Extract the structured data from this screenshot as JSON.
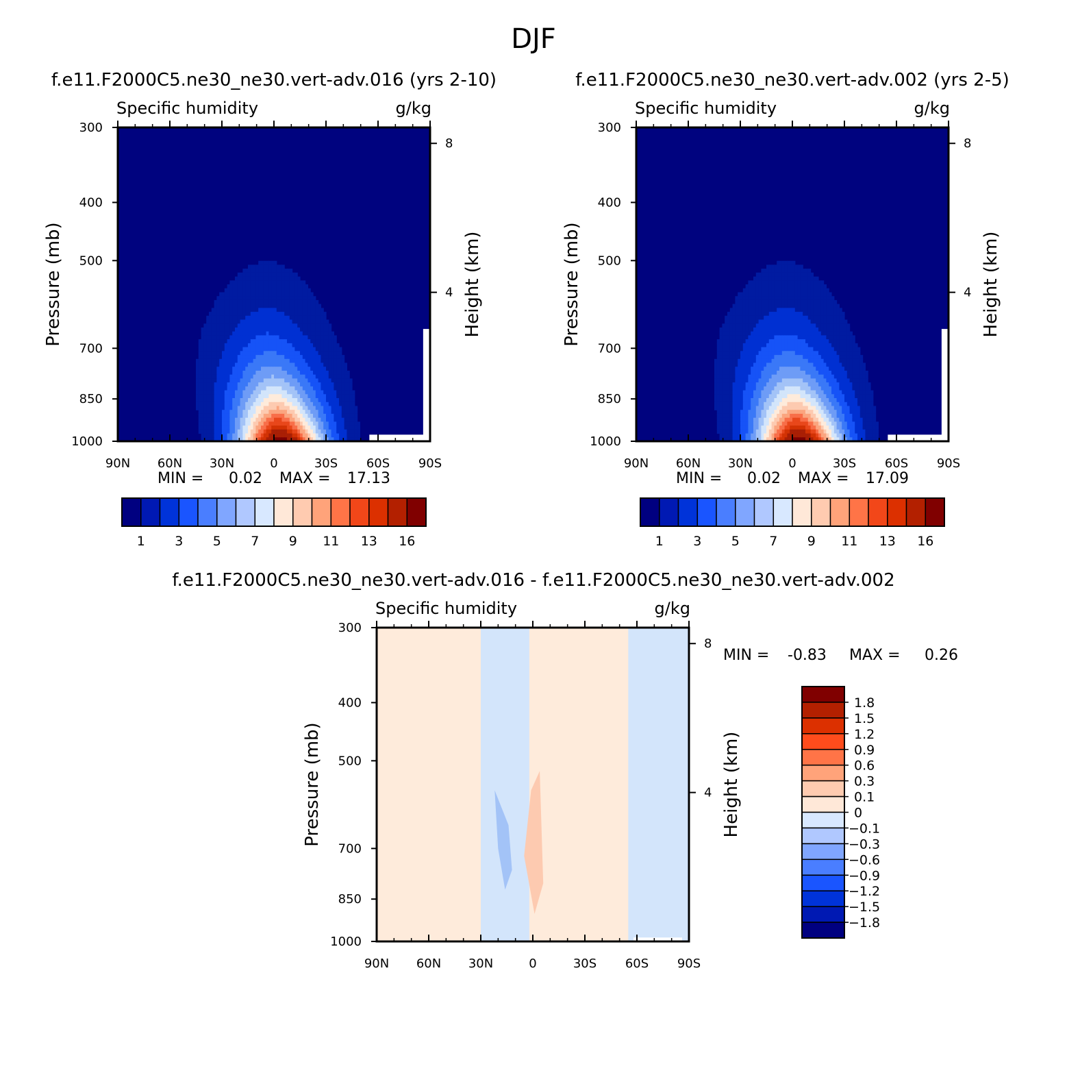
{
  "figure": {
    "title": "DJF"
  },
  "chart_data": [
    {
      "id": "panel1",
      "type": "heatmap",
      "title": "f.e11.F2000C5.ne30_ne30.vert-adv.016 (yrs 2-10)",
      "left_label": "Specific humidity",
      "right_label": "g/kg",
      "xlabel": "",
      "ylabel": "Pressure (mb)",
      "y2label": "Height (km)",
      "x_ticks": [
        "90N",
        "60N",
        "30N",
        "0",
        "30S",
        "60S",
        "90S"
      ],
      "y_ticks": [
        300,
        400,
        500,
        700,
        850,
        1000
      ],
      "y2_ticks": [
        8,
        4
      ],
      "xlim": [
        90,
        -90
      ],
      "ylim": [
        1000,
        300
      ],
      "stats": {
        "min_label": "MIN =",
        "min": "0.02",
        "max_label": "MAX =",
        "max": "17.13"
      },
      "colorbar": {
        "colors": [
          "#000080",
          "#0019b3",
          "#0033d9",
          "#1a55ff",
          "#4a7eff",
          "#80a6ff",
          "#b0c8ff",
          "#d8e8ff",
          "#ffe8d8",
          "#ffcbb0",
          "#ffa37a",
          "#ff7447",
          "#f24719",
          "#dc3000",
          "#b32000",
          "#800000"
        ],
        "labels": [
          "1",
          "3",
          "5",
          "7",
          "9",
          "11",
          "13",
          "16"
        ]
      },
      "levels": [
        1,
        2,
        3,
        4,
        5,
        6,
        7,
        8,
        9,
        10,
        11,
        12,
        13,
        14,
        16
      ],
      "band_colors": [
        "#00037f",
        "#001ba1",
        "#0030d2",
        "#1653f7",
        "#3a78f7",
        "#6e9cf6",
        "#a3c3f7",
        "#d3e5fb",
        "#feebdb",
        "#fdcab0",
        "#fba57f",
        "#f86e49",
        "#e8471b",
        "#d23204",
        "#a91f05",
        "#7c0103"
      ]
    },
    {
      "id": "panel2",
      "type": "heatmap",
      "title": "f.e11.F2000C5.ne30_ne30.vert-adv.002 (yrs 2-5)",
      "left_label": "Specific humidity",
      "right_label": "g/kg",
      "xlabel": "",
      "ylabel": "Pressure (mb)",
      "y2label": "Height (km)",
      "x_ticks": [
        "90N",
        "60N",
        "30N",
        "0",
        "30S",
        "60S",
        "90S"
      ],
      "y_ticks": [
        300,
        400,
        500,
        700,
        850,
        1000
      ],
      "y2_ticks": [
        8,
        4
      ],
      "xlim": [
        90,
        -90
      ],
      "ylim": [
        1000,
        300
      ],
      "stats": {
        "min_label": "MIN =",
        "min": "0.02",
        "max_label": "MAX =",
        "max": "17.09"
      },
      "colorbar": {
        "colors": [
          "#000080",
          "#0019b3",
          "#0033d9",
          "#1a55ff",
          "#4a7eff",
          "#80a6ff",
          "#b0c8ff",
          "#d8e8ff",
          "#ffe8d8",
          "#ffcbb0",
          "#ffa37a",
          "#ff7447",
          "#f24719",
          "#dc3000",
          "#b32000",
          "#800000"
        ],
        "labels": [
          "1",
          "3",
          "5",
          "7",
          "9",
          "11",
          "13",
          "16"
        ]
      },
      "levels": [
        1,
        2,
        3,
        4,
        5,
        6,
        7,
        8,
        9,
        10,
        11,
        12,
        13,
        14,
        16
      ],
      "band_colors": [
        "#00037f",
        "#001ba1",
        "#0030d2",
        "#1653f7",
        "#3a78f7",
        "#6e9cf6",
        "#a3c3f7",
        "#d3e5fb",
        "#feebdb",
        "#fdcab0",
        "#fba57f",
        "#f86e49",
        "#e8471b",
        "#d23204",
        "#a91f05",
        "#7c0103"
      ]
    },
    {
      "id": "panel3",
      "type": "heatmap",
      "title": "f.e11.F2000C5.ne30_ne30.vert-adv.016 - f.e11.F2000C5.ne30_ne30.vert-adv.002",
      "left_label": "Specific humidity",
      "right_label": "g/kg",
      "xlabel": "",
      "ylabel": "Pressure (mb)",
      "y2label": "Height (km)",
      "x_ticks": [
        "90N",
        "60N",
        "30N",
        "0",
        "30S",
        "60S",
        "90S"
      ],
      "y_ticks": [
        300,
        400,
        500,
        700,
        850,
        1000
      ],
      "y2_ticks": [
        8,
        4
      ],
      "xlim": [
        90,
        -90
      ],
      "ylim": [
        1000,
        300
      ],
      "stats": {
        "min_label": "MIN =",
        "min": "-0.83",
        "max_label": "MAX =",
        "max": "0.26"
      },
      "colorbar": {
        "colors": [
          "#800000",
          "#b32000",
          "#dc3000",
          "#ff4c1c",
          "#ff7447",
          "#ffa37a",
          "#ffcbb0",
          "#ffe8d8",
          "#d8e8ff",
          "#b0c8ff",
          "#80a6ff",
          "#4a7eff",
          "#1a55ff",
          "#0033d9",
          "#0019b3",
          "#000080"
        ],
        "labels": [
          "1.8",
          "1.5",
          "1.2",
          "0.9",
          "0.6",
          "0.3",
          "0.1",
          "0",
          "-0.1",
          "-0.3",
          "-0.6",
          "-0.9",
          "-1.2",
          "-1.5",
          "-1.8"
        ]
      },
      "background_color": "#feebdb",
      "shapes": [
        {
          "label": "positive band",
          "color": "#feebdb",
          "lat": [
            90,
            90,
            30,
            30
          ],
          "p": [
            300,
            1000,
            1000,
            300
          ]
        },
        {
          "label": "negative band 30N-2N",
          "color": "#d3e5fb",
          "lat": [
            30,
            30,
            2,
            2
          ],
          "p": [
            300,
            1000,
            1000,
            300
          ]
        },
        {
          "label": "negative band 55S-90S",
          "color": "#d3e5fb",
          "lat": [
            -55,
            -55,
            -90,
            -90
          ],
          "p": [
            300,
            1000,
            1000,
            300
          ]
        },
        {
          "label": "positive 0-6S",
          "color": "#fdcab0",
          "lat": [
            1,
            5,
            -1,
            -6,
            -4
          ],
          "p": [
            560,
            720,
            900,
            800,
            520
          ]
        },
        {
          "label": "negative 20N",
          "color": "#a3c3f7",
          "lat": [
            22,
            14,
            12,
            16,
            20
          ],
          "p": [
            560,
            640,
            760,
            820,
            700
          ]
        }
      ]
    }
  ]
}
